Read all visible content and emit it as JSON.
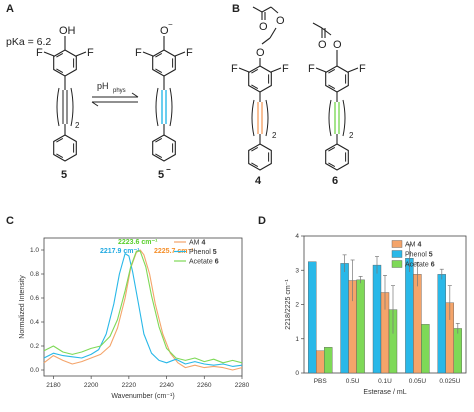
{
  "panels": {
    "a": {
      "letter": "A",
      "pka_label": "pKa = 6.2",
      "reaction_label": "pH",
      "reaction_sub": "phys",
      "compound_left": "5",
      "compound_right": "5",
      "compound_right_sup": "−",
      "repeat_label": "2",
      "atoms": {
        "oh": "OH",
        "o_minus": "O",
        "o_minus_sup": "−",
        "f": "F"
      }
    },
    "b": {
      "letter": "B",
      "compound_left": "4",
      "compound_right": "6",
      "repeat_label": "2",
      "atoms": {
        "o": "O",
        "f": "F"
      }
    },
    "c": {
      "letter": "C"
    },
    "d": {
      "letter": "D"
    }
  },
  "colors": {
    "am4": "#f4a46a",
    "phenol5": "#29b8e8",
    "acetate6": "#7ed957",
    "peak_green": "#59cf2c",
    "peak_blue": "#1fa9e1",
    "peak_orange": "#f58f2a",
    "axis": "#444444"
  },
  "chart_data": [
    {
      "type": "line",
      "panel": "C",
      "xlabel": "Wavenumber (cm⁻¹)",
      "ylabel": "Normalized Intensity",
      "xlim": [
        2175,
        2280
      ],
      "ylim": [
        -0.05,
        1.1
      ],
      "x_ticks": [
        "2180",
        "2200",
        "2220",
        "2240",
        "2260",
        "2280"
      ],
      "y_ticks": [
        "0.0",
        "0.2",
        "0.4",
        "0.6",
        "0.8",
        "1.0"
      ],
      "legend": {
        "position": "top-right",
        "entries": [
          {
            "text": "AM ",
            "bold": "4"
          },
          {
            "text": "Phenol ",
            "bold": "5"
          },
          {
            "text": "Acetate ",
            "bold": "6"
          }
        ]
      },
      "annotations": [
        {
          "text": "2223.6 cm⁻¹",
          "color": "#59cf2c"
        },
        {
          "text": "2217.9 cm⁻¹",
          "color": "#1fa9e1"
        },
        {
          "text": "2225.7 cm⁻¹",
          "color": "#f58f2a"
        }
      ],
      "series": [
        {
          "name": "AM 4",
          "color": "#f4a46a",
          "x": [
            2175,
            2180,
            2185,
            2190,
            2195,
            2200,
            2205,
            2210,
            2214,
            2218,
            2221,
            2224,
            2226,
            2228,
            2231,
            2234,
            2238,
            2242,
            2246,
            2250,
            2255,
            2260,
            2265,
            2270,
            2275,
            2280
          ],
          "y": [
            0.06,
            0.12,
            0.08,
            0.05,
            0.07,
            0.1,
            0.13,
            0.2,
            0.35,
            0.6,
            0.85,
            0.98,
            1.0,
            0.96,
            0.8,
            0.55,
            0.3,
            0.14,
            0.06,
            0.02,
            0.04,
            0.02,
            0.03,
            0.02,
            0.0,
            0.02
          ]
        },
        {
          "name": "Phenol 5",
          "color": "#29b8e8",
          "x": [
            2175,
            2180,
            2185,
            2190,
            2195,
            2200,
            2204,
            2208,
            2212,
            2215,
            2218,
            2220,
            2222,
            2225,
            2228,
            2232,
            2236,
            2240,
            2245,
            2250,
            2255,
            2260,
            2265,
            2270,
            2275,
            2280
          ],
          "y": [
            0.1,
            0.14,
            0.12,
            0.11,
            0.1,
            0.13,
            0.17,
            0.3,
            0.55,
            0.8,
            0.97,
            0.95,
            0.82,
            0.56,
            0.3,
            0.14,
            0.08,
            0.06,
            0.09,
            0.05,
            0.07,
            0.05,
            0.04,
            0.05,
            0.03,
            0.04
          ]
        },
        {
          "name": "Acetate 6",
          "color": "#7ed957",
          "x": [
            2175,
            2180,
            2185,
            2190,
            2195,
            2200,
            2205,
            2210,
            2214,
            2218,
            2221,
            2224,
            2226,
            2229,
            2232,
            2236,
            2240,
            2245,
            2250,
            2255,
            2260,
            2265,
            2270,
            2275,
            2280
          ],
          "y": [
            0.16,
            0.2,
            0.15,
            0.13,
            0.15,
            0.18,
            0.2,
            0.28,
            0.42,
            0.66,
            0.86,
            0.99,
            0.99,
            0.86,
            0.62,
            0.36,
            0.18,
            0.1,
            0.08,
            0.1,
            0.07,
            0.09,
            0.06,
            0.08,
            0.06
          ]
        }
      ]
    },
    {
      "type": "bar",
      "panel": "D",
      "xlabel": "Esterase / mL",
      "ylabel": "2218/2225 cm⁻¹",
      "ylim": [
        0,
        4
      ],
      "y_ticks": [
        "0",
        "1",
        "2",
        "3",
        "4"
      ],
      "categories": [
        "PBS",
        "0.5U",
        "0.1U",
        "0.05U",
        "0.025U"
      ],
      "legend": {
        "position": "top-right",
        "entries": [
          {
            "text": "AM ",
            "bold": "4"
          },
          {
            "text": "Phenol ",
            "bold": "5"
          },
          {
            "text": "Acetate ",
            "bold": "6"
          }
        ]
      },
      "series": [
        {
          "name": "Phenol 5",
          "color": "#29b8e8",
          "values": [
            3.25,
            3.2,
            3.15,
            3.35,
            2.88
          ],
          "errors": [
            0.0,
            0.25,
            0.25,
            0.4,
            0.15
          ]
        },
        {
          "name": "AM 4",
          "color": "#f4a46a",
          "values": [
            0.65,
            2.7,
            2.35,
            2.88,
            2.05
          ],
          "errors": [
            0.0,
            0.6,
            0.5,
            0.35,
            0.5
          ]
        },
        {
          "name": "Acetate 6",
          "color": "#7ed957",
          "values": [
            0.75,
            2.72,
            1.85,
            1.42,
            1.3
          ],
          "errors": [
            0.0,
            0.1,
            0.7,
            0.0,
            0.15
          ]
        }
      ]
    }
  ]
}
